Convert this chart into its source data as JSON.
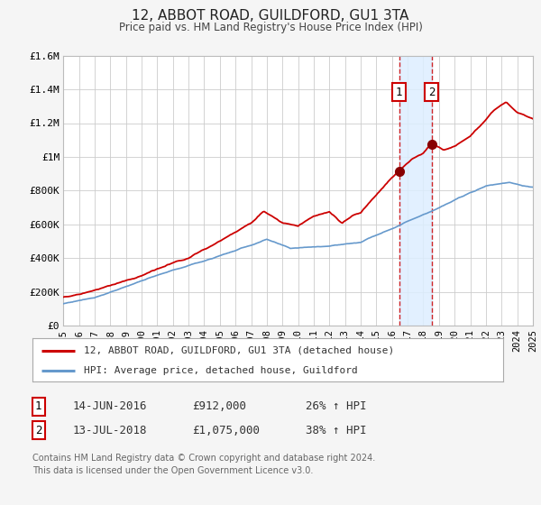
{
  "title": "12, ABBOT ROAD, GUILDFORD, GU1 3TA",
  "subtitle": "Price paid vs. HM Land Registry's House Price Index (HPI)",
  "xlim": [
    1995,
    2025
  ],
  "ylim": [
    0,
    1600000
  ],
  "yticks": [
    0,
    200000,
    400000,
    600000,
    800000,
    1000000,
    1200000,
    1400000,
    1600000
  ],
  "ytick_labels": [
    "£0",
    "£200K",
    "£400K",
    "£600K",
    "£800K",
    "£1M",
    "£1.2M",
    "£1.4M",
    "£1.6M"
  ],
  "xticks": [
    1995,
    1996,
    1997,
    1998,
    1999,
    2000,
    2001,
    2002,
    2003,
    2004,
    2005,
    2006,
    2007,
    2008,
    2009,
    2010,
    2011,
    2012,
    2013,
    2014,
    2015,
    2016,
    2017,
    2018,
    2019,
    2020,
    2021,
    2022,
    2023,
    2024,
    2025
  ],
  "red_line_color": "#cc0000",
  "blue_line_color": "#6699cc",
  "marker_color": "#880000",
  "sale1_x": 2016.45,
  "sale1_y": 912000,
  "sale2_x": 2018.54,
  "sale2_y": 1075000,
  "vline1_x": 2016.45,
  "vline2_x": 2018.54,
  "shade_color": "#ddeeff",
  "legend_label1": "12, ABBOT ROAD, GUILDFORD, GU1 3TA (detached house)",
  "legend_label2": "HPI: Average price, detached house, Guildford",
  "sale1_date": "14-JUN-2016",
  "sale1_price": "£912,000",
  "sale1_hpi": "26% ↑ HPI",
  "sale2_date": "13-JUL-2018",
  "sale2_price": "£1,075,000",
  "sale2_hpi": "38% ↑ HPI",
  "footnote1": "Contains HM Land Registry data © Crown copyright and database right 2024.",
  "footnote2": "This data is licensed under the Open Government Licence v3.0.",
  "bg_color": "#f5f5f5",
  "plot_bg_color": "#ffffff",
  "grid_color": "#cccccc"
}
